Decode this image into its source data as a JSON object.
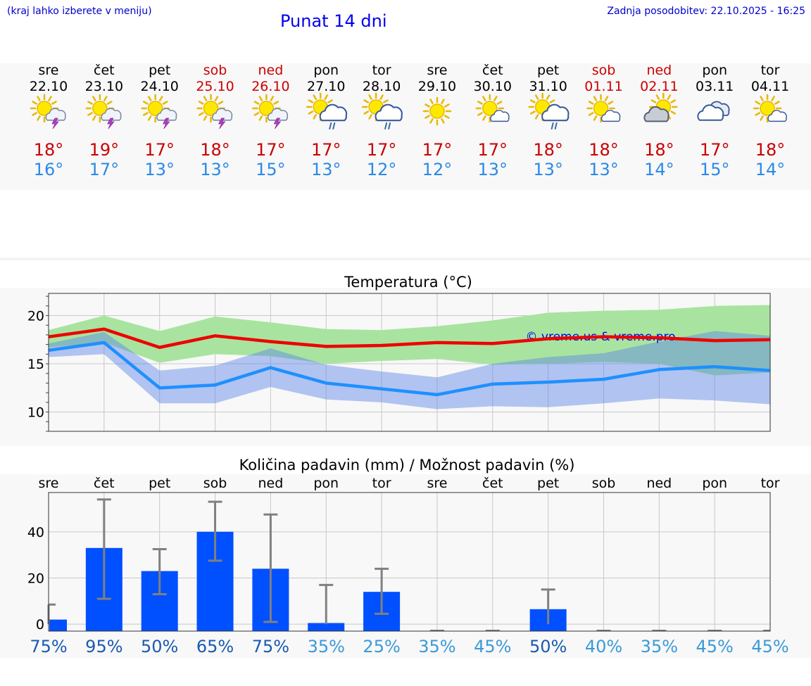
{
  "header": {
    "location_hint": "(kraj lahko izberete v meniju)",
    "title": "Punat 14 dni",
    "updated": "Zadnja posodobitev: 22.10.2025 - 16:25"
  },
  "forecast": {
    "days": [
      {
        "day": "sre",
        "date": "22.10",
        "weekend": false,
        "icon": "sun-cloud-storm-icon",
        "max": "18°",
        "min": "16°"
      },
      {
        "day": "čet",
        "date": "23.10",
        "weekend": false,
        "icon": "sun-cloud-storm-icon",
        "max": "19°",
        "min": "17°"
      },
      {
        "day": "pet",
        "date": "24.10",
        "weekend": false,
        "icon": "sun-cloud-storm-icon",
        "max": "17°",
        "min": "13°"
      },
      {
        "day": "sob",
        "date": "25.10",
        "weekend": true,
        "icon": "sun-cloud-storm-icon",
        "max": "18°",
        "min": "13°"
      },
      {
        "day": "ned",
        "date": "26.10",
        "weekend": true,
        "icon": "sun-cloud-storm-icon",
        "max": "17°",
        "min": "15°"
      },
      {
        "day": "pon",
        "date": "27.10",
        "weekend": false,
        "icon": "sun-cloud-rain-icon",
        "max": "17°",
        "min": "13°"
      },
      {
        "day": "tor",
        "date": "28.10",
        "weekend": false,
        "icon": "sun-cloud-rain-icon",
        "max": "17°",
        "min": "12°"
      },
      {
        "day": "sre",
        "date": "29.10",
        "weekend": false,
        "icon": "sun-icon",
        "max": "17°",
        "min": "12°"
      },
      {
        "day": "čet",
        "date": "30.10",
        "weekend": false,
        "icon": "sun-small-cloud-icon",
        "max": "17°",
        "min": "13°"
      },
      {
        "day": "pet",
        "date": "31.10",
        "weekend": false,
        "icon": "sun-cloud-rain-icon",
        "max": "18°",
        "min": "13°"
      },
      {
        "day": "sob",
        "date": "01.11",
        "weekend": true,
        "icon": "sun-small-cloud-icon",
        "max": "18°",
        "min": "13°"
      },
      {
        "day": "ned",
        "date": "02.11",
        "weekend": true,
        "icon": "sun-grey-cloud-icon",
        "max": "18°",
        "min": "14°"
      },
      {
        "day": "pon",
        "date": "03.11",
        "weekend": false,
        "icon": "cloudy-icon",
        "max": "17°",
        "min": "15°"
      },
      {
        "day": "tor",
        "date": "04.11",
        "weekend": false,
        "icon": "sun-small-cloud-icon",
        "max": "18°",
        "min": "14°"
      }
    ]
  },
  "colors": {
    "link": "#0000cc",
    "title": "#0000ee",
    "weekend": "#cc0000",
    "max_temp": "#cc0000",
    "min_temp": "#2a8ae8",
    "max_line": "#ee0000",
    "min_line": "#1e90ff",
    "max_band": "#a8e4a0",
    "min_band": "#a8c0f0",
    "bar": "#0050ff",
    "error_bar": "#808080",
    "pct_high": "#1a5ab0",
    "pct_low": "#3a9ad8"
  },
  "chart_data": [
    {
      "type": "line",
      "title": "Temperatura (°C)",
      "watermark": "© vreme.us & vreme.pro",
      "x": [
        "22.10",
        "23.10",
        "24.10",
        "25.10",
        "26.10",
        "27.10",
        "28.10",
        "29.10",
        "30.10",
        "31.10",
        "01.11",
        "02.11",
        "03.11",
        "04.11"
      ],
      "yticks": [
        10,
        15,
        20
      ],
      "ylim": [
        8,
        22.3
      ],
      "grid": true,
      "series": [
        {
          "role": "max",
          "values": [
            17.8,
            18.6,
            16.7,
            17.9,
            17.3,
            16.8,
            16.9,
            17.2,
            17.1,
            17.6,
            17.8,
            17.7,
            17.4,
            17.5
          ]
        },
        {
          "role": "min",
          "values": [
            16.4,
            17.2,
            12.5,
            12.8,
            14.6,
            13.0,
            12.4,
            11.8,
            12.9,
            13.1,
            13.4,
            14.4,
            14.7,
            14.3
          ]
        }
      ],
      "bands": [
        {
          "role": "max",
          "low": [
            16.7,
            17.2,
            15.1,
            16.0,
            15.8,
            15.0,
            15.3,
            15.5,
            14.9,
            15.0,
            15.2,
            15.0,
            13.8,
            14.1
          ],
          "high": [
            18.5,
            20.0,
            18.4,
            19.9,
            19.3,
            18.6,
            18.5,
            18.9,
            19.5,
            20.3,
            20.5,
            20.6,
            21.0,
            21.1
          ]
        },
        {
          "role": "min",
          "low": [
            15.7,
            16.0,
            10.9,
            10.9,
            12.6,
            11.3,
            11.0,
            10.3,
            10.6,
            10.5,
            10.9,
            11.4,
            11.2,
            10.8
          ],
          "high": [
            17.1,
            18.3,
            14.3,
            14.8,
            16.6,
            14.9,
            14.2,
            13.6,
            15.0,
            15.7,
            16.1,
            17.3,
            18.4,
            17.9
          ]
        }
      ]
    },
    {
      "type": "bar",
      "title": "Količina padavin (mm) / Možnost padavin (%)",
      "categories": [
        "sre",
        "čet",
        "pet",
        "sob",
        "ned",
        "pon",
        "tor",
        "sre",
        "čet",
        "pet",
        "sob",
        "ned",
        "pon",
        "tor"
      ],
      "values": [
        2.0,
        33,
        23,
        40,
        24,
        0.5,
        14,
        0,
        0,
        6.5,
        0,
        0,
        0,
        0
      ],
      "error_high": [
        8.5,
        54,
        32.5,
        53,
        47.5,
        17,
        24,
        0,
        0,
        15,
        0,
        0,
        0,
        0
      ],
      "error_low": [
        0,
        11,
        13,
        27.5,
        1,
        0,
        4.5,
        0,
        0,
        0,
        0,
        0,
        0,
        0
      ],
      "probability": [
        "75%",
        "95%",
        "50%",
        "65%",
        "75%",
        "35%",
        "25%",
        "35%",
        "45%",
        "50%",
        "40%",
        "35%",
        "45%",
        "45%"
      ],
      "yticks": [
        0,
        20,
        40
      ],
      "ylim": [
        -3,
        57
      ],
      "grid": true
    }
  ]
}
